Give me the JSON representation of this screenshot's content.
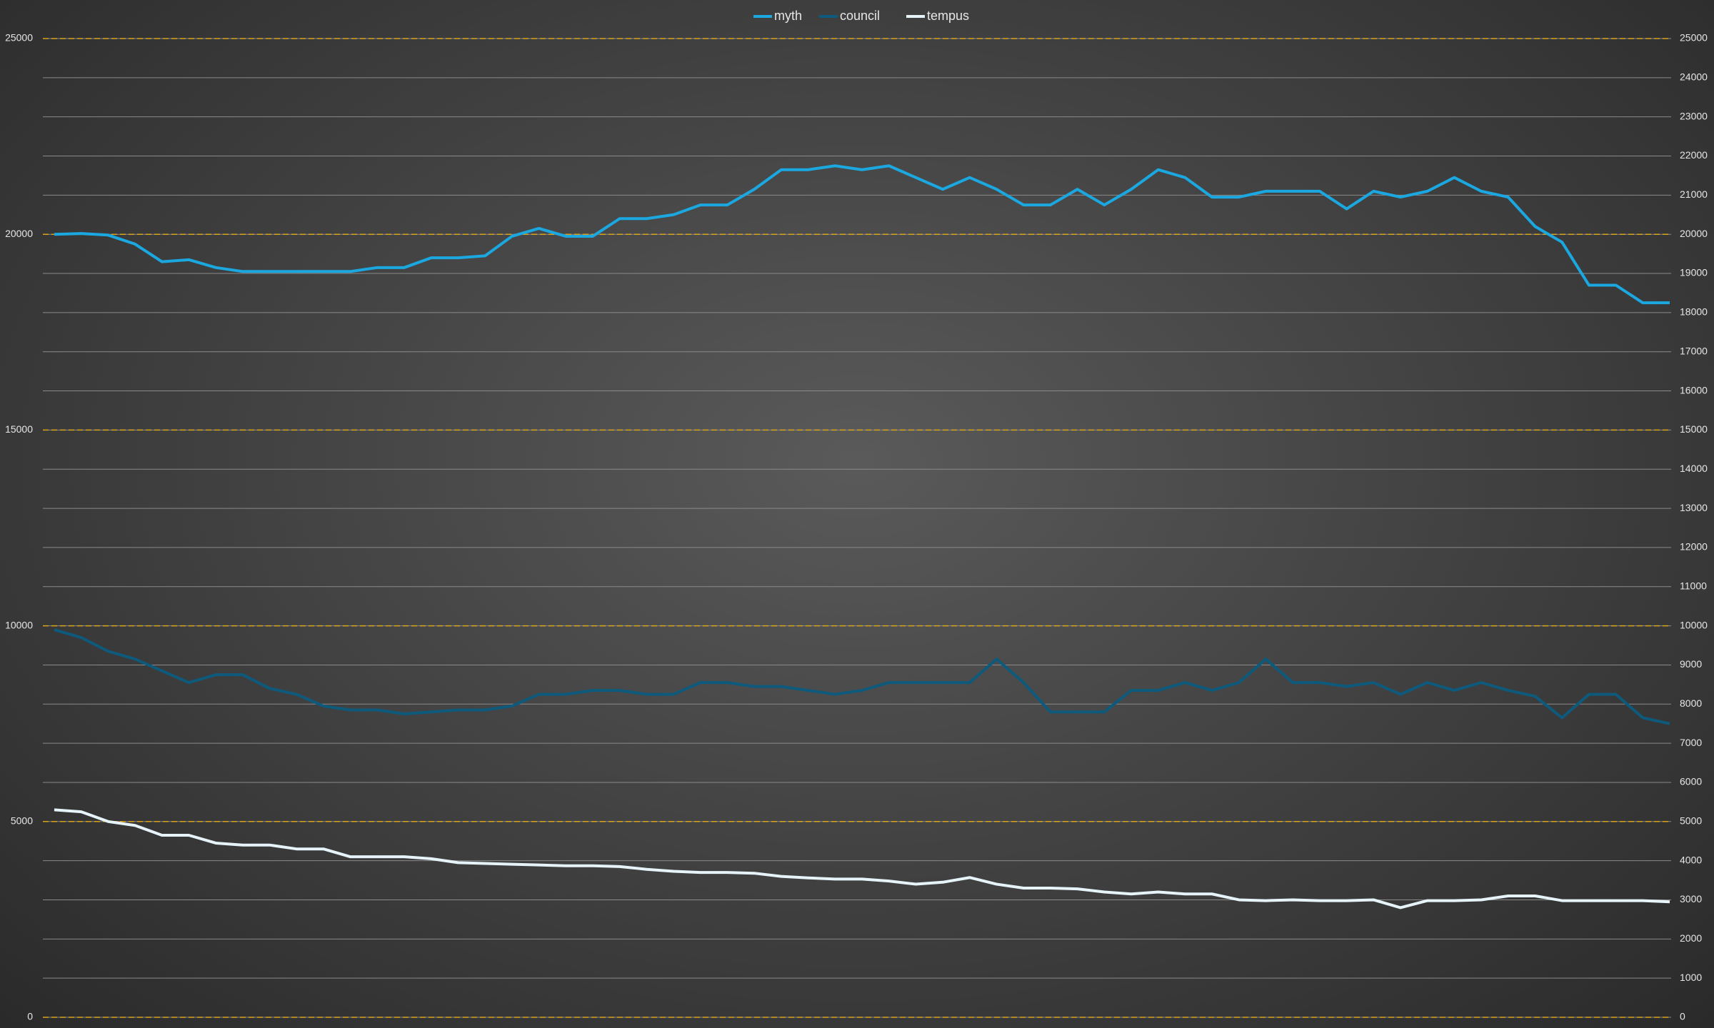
{
  "chart_data": {
    "type": "line",
    "categories": [
      null,
      null,
      null,
      null,
      null,
      null,
      null,
      null,
      null,
      null,
      null,
      null,
      null,
      null,
      null,
      null,
      null,
      null,
      null,
      null,
      null,
      null,
      null,
      null,
      null,
      null,
      null,
      null,
      null,
      null,
      null,
      null,
      null,
      null,
      null,
      null,
      null,
      null,
      null,
      null,
      null,
      null,
      null,
      null,
      null,
      null,
      null,
      null,
      null,
      null,
      null,
      null,
      null,
      null,
      null,
      null,
      null,
      null,
      null,
      null,
      null
    ],
    "series": [
      {
        "name": "myth",
        "color": "#1ba8e0",
        "values": [
          20000,
          20020,
          19980,
          19750,
          19300,
          19350,
          19150,
          19050,
          19050,
          19050,
          19050,
          19050,
          19150,
          19150,
          19400,
          19400,
          19450,
          19950,
          20150,
          19950,
          19950,
          20400,
          20400,
          20500,
          20750,
          20750,
          21150,
          21650,
          21650,
          21750,
          21650,
          21750,
          21450,
          21150,
          21450,
          21150,
          20750,
          20750,
          21150,
          20750,
          21150,
          21650,
          21450,
          20950,
          20950,
          21100,
          21100,
          21100,
          20650,
          21100,
          20950,
          21100,
          21450,
          21100,
          20950,
          20200,
          19800,
          18700,
          18700,
          18250,
          18250
        ]
      },
      {
        "name": "council",
        "color": "#0e5a7c",
        "values": [
          9900,
          9700,
          9350,
          9150,
          8850,
          8550,
          8750,
          8750,
          8400,
          8250,
          7950,
          7850,
          7850,
          7750,
          7800,
          7850,
          7850,
          7950,
          8250,
          8250,
          8350,
          8350,
          8250,
          8250,
          8550,
          8550,
          8450,
          8450,
          8350,
          8250,
          8350,
          8550,
          8550,
          8550,
          8550,
          9150,
          8550,
          7800,
          7800,
          7800,
          8350,
          8350,
          8550,
          8350,
          8550,
          9150,
          8550,
          8550,
          8450,
          8550,
          8250,
          8550,
          8350,
          8550,
          8350,
          8200,
          7650,
          8250,
          8250,
          7650,
          7500
        ]
      },
      {
        "name": "tempus",
        "color": "#e6f4fa",
        "values": [
          5300,
          5250,
          5000,
          4900,
          4650,
          4650,
          4450,
          4400,
          4400,
          4300,
          4300,
          4100,
          4100,
          4100,
          4050,
          3950,
          3930,
          3910,
          3890,
          3870,
          3870,
          3850,
          3780,
          3730,
          3700,
          3700,
          3680,
          3600,
          3560,
          3530,
          3530,
          3480,
          3400,
          3450,
          3570,
          3400,
          3300,
          3300,
          3280,
          3200,
          3150,
          3200,
          3150,
          3150,
          3000,
          2980,
          3000,
          2980,
          2980,
          3000,
          2800,
          2980,
          2980,
          3000,
          3100,
          3100,
          2980,
          2980,
          2980,
          2980,
          2950
        ]
      }
    ],
    "ylim": [
      0,
      25000
    ],
    "yticks": [
      0,
      5000,
      10000,
      15000,
      20000,
      25000
    ],
    "y2lim": [
      0,
      25000
    ],
    "y2ticks": [
      0,
      1000,
      2000,
      3000,
      4000,
      5000,
      6000,
      7000,
      8000,
      9000,
      10000,
      11000,
      12000,
      13000,
      14000,
      15000,
      16000,
      17000,
      18000,
      19000,
      20000,
      21000,
      22000,
      23000,
      24000,
      25000
    ],
    "grid": true,
    "legend": "top"
  }
}
